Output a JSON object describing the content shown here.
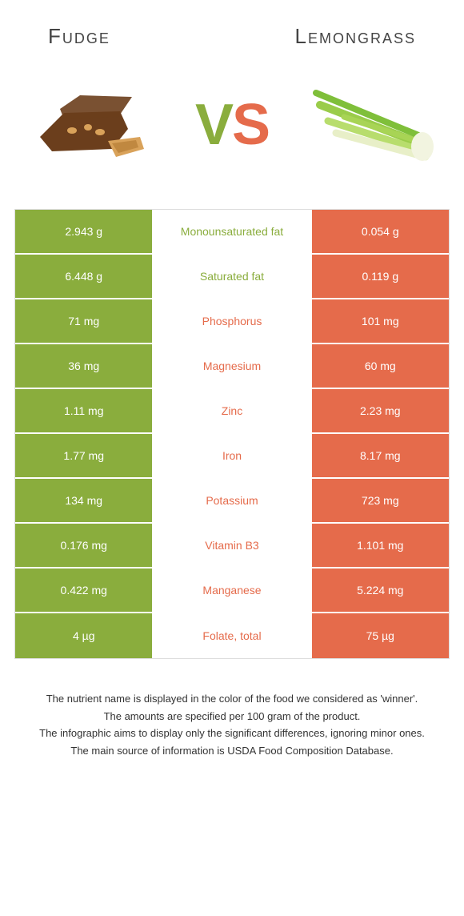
{
  "colors": {
    "fudge": "#8aad3d",
    "lemongrass": "#e56b4b",
    "title_text": "#444444"
  },
  "header": {
    "left_title": "Fudge",
    "right_title": "Lemongrass"
  },
  "vs": {
    "v": "V",
    "s": "S"
  },
  "rows": [
    {
      "left": "2.943 g",
      "label": "Monounsaturated fat",
      "right": "0.054 g",
      "winner": "fudge"
    },
    {
      "left": "6.448 g",
      "label": "Saturated fat",
      "right": "0.119 g",
      "winner": "fudge"
    },
    {
      "left": "71 mg",
      "label": "Phosphorus",
      "right": "101 mg",
      "winner": "lemongrass"
    },
    {
      "left": "36 mg",
      "label": "Magnesium",
      "right": "60 mg",
      "winner": "lemongrass"
    },
    {
      "left": "1.11 mg",
      "label": "Zinc",
      "right": "2.23 mg",
      "winner": "lemongrass"
    },
    {
      "left": "1.77 mg",
      "label": "Iron",
      "right": "8.17 mg",
      "winner": "lemongrass"
    },
    {
      "left": "134 mg",
      "label": "Potassium",
      "right": "723 mg",
      "winner": "lemongrass"
    },
    {
      "left": "0.176 mg",
      "label": "Vitamin B3",
      "right": "1.101 mg",
      "winner": "lemongrass"
    },
    {
      "left": "0.422 mg",
      "label": "Manganese",
      "right": "5.224 mg",
      "winner": "lemongrass"
    },
    {
      "left": "4 µg",
      "label": "Folate, total",
      "right": "75 µg",
      "winner": "lemongrass"
    }
  ],
  "footnotes": [
    "The nutrient name is displayed in the color of the food we considered as 'winner'.",
    "The amounts are specified per 100 gram of the product.",
    "The infographic aims to display only the significant differences, ignoring minor ones.",
    "The main source of information is USDA Food Composition Database."
  ]
}
